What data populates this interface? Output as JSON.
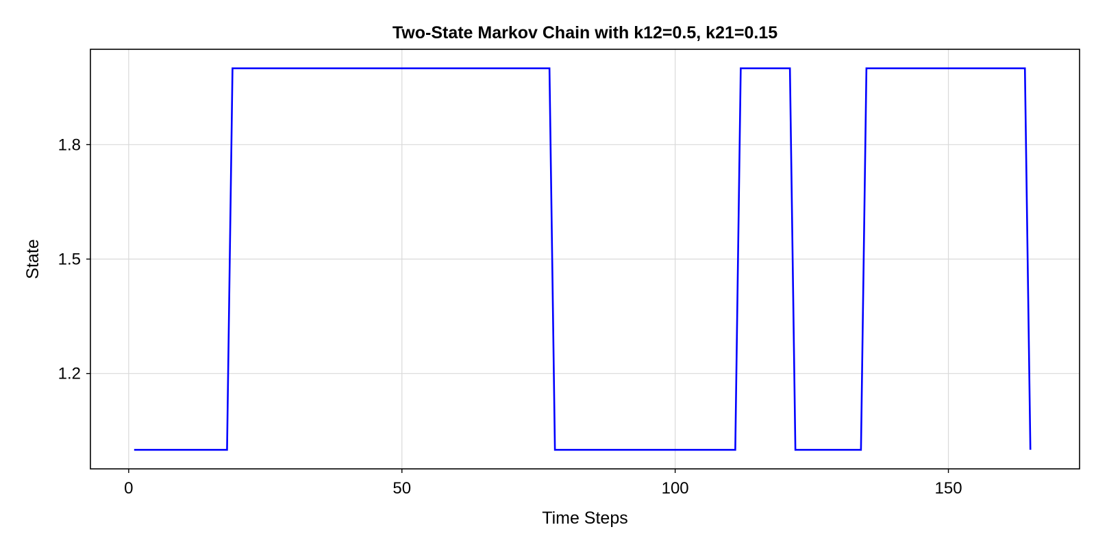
{
  "chart_data": {
    "type": "line",
    "title": "Two-State Markov Chain with k12=0.5, k21=0.15",
    "xlabel": "Time Steps",
    "ylabel": "State",
    "xlim": [
      -7,
      174
    ],
    "ylim": [
      0.95,
      2.05
    ],
    "xticks": [
      0,
      50,
      100,
      150
    ],
    "xtick_labels": [
      "0",
      "50",
      "100",
      "150"
    ],
    "yticks": [
      1.2,
      1.5,
      1.8
    ],
    "ytick_labels": [
      "1.2",
      "1.5",
      "1.8"
    ],
    "grid": true,
    "series": [
      {
        "color": "#0000ff",
        "x": [
          1,
          18,
          19,
          77,
          78,
          111,
          112,
          121,
          122,
          134,
          135,
          164,
          165
        ],
        "y": [
          1,
          1,
          2,
          2,
          1,
          1,
          2,
          2,
          1,
          1,
          2,
          2,
          1
        ]
      }
    ]
  }
}
